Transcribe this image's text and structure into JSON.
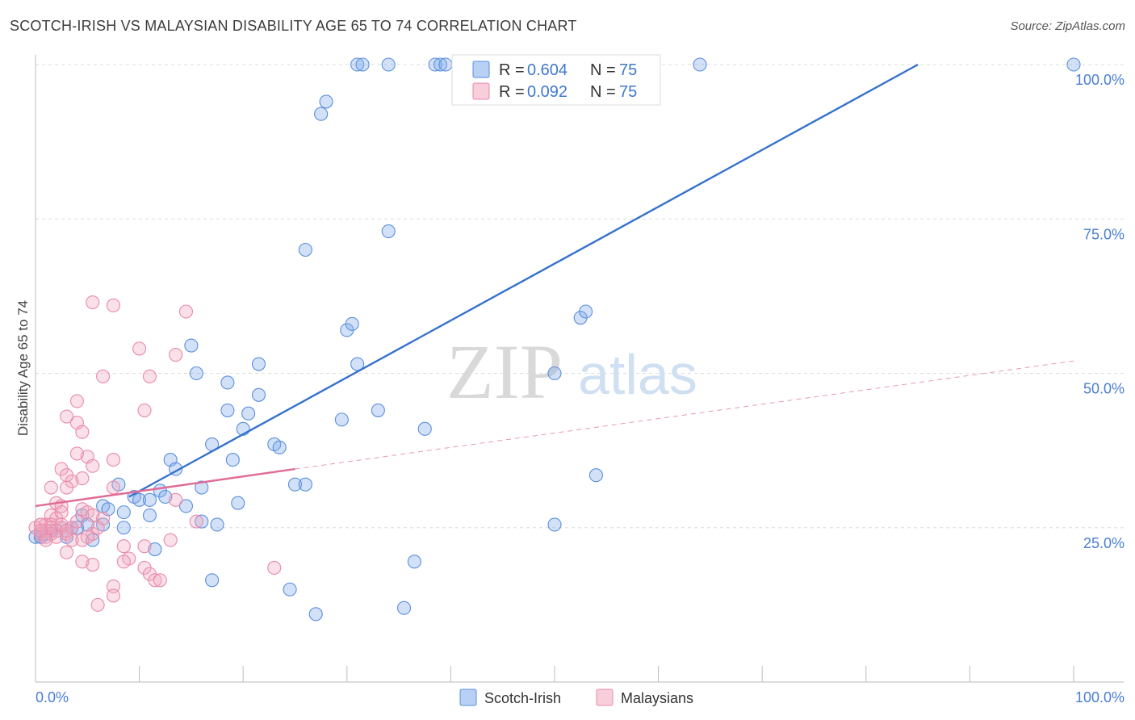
{
  "title": "SCOTCH-IRISH VS MALAYSIAN DISABILITY AGE 65 TO 74 CORRELATION CHART",
  "source": "Source: ZipAtlas.com",
  "watermark": {
    "zip": "ZIP",
    "atlas": "atlas"
  },
  "chart_data": {
    "type": "scatter",
    "title": "SCOTCH-IRISH VS MALAYSIAN DISABILITY AGE 65 TO 74 CORRELATION CHART",
    "xlabel": "",
    "ylabel": "Disability Age 65 to 74",
    "xlim": [
      0,
      100
    ],
    "ylim": [
      0,
      100
    ],
    "x_tick_labels": [
      "0.0%",
      "100.0%"
    ],
    "y_ticks": [
      25,
      50,
      75,
      100
    ],
    "y_tick_labels": [
      "25.0%",
      "50.0%",
      "75.0%",
      "100.0%"
    ],
    "grid": true,
    "legend": [
      {
        "r_label": "R =",
        "r": "0.604",
        "n_label": "N =",
        "n": "75",
        "color": "#7eaaea"
      },
      {
        "r_label": "R =",
        "r": "0.092",
        "n_label": "N =",
        "n": "75",
        "color": "#f2a6be"
      }
    ],
    "series": [
      {
        "name": "Scotch-Irish",
        "color": "#7eaaea",
        "line_color": "#3572cc",
        "trend": {
          "x": [
            9,
            85
          ],
          "y": [
            30,
            100
          ]
        },
        "points": [
          [
            31,
            100
          ],
          [
            31.5,
            100
          ],
          [
            34,
            100
          ],
          [
            38.5,
            100
          ],
          [
            39,
            100
          ],
          [
            39.5,
            100
          ],
          [
            64,
            100
          ],
          [
            100,
            100
          ],
          [
            28,
            94
          ],
          [
            27.5,
            92
          ],
          [
            34,
            73
          ],
          [
            26,
            70
          ],
          [
            52.5,
            59
          ],
          [
            53,
            60
          ],
          [
            30,
            57
          ],
          [
            30.5,
            58
          ],
          [
            15,
            54.5
          ],
          [
            15.5,
            50
          ],
          [
            21.5,
            51.5
          ],
          [
            31,
            51.5
          ],
          [
            50,
            50
          ],
          [
            18.5,
            48.5
          ],
          [
            21.5,
            46.5
          ],
          [
            18.5,
            44
          ],
          [
            20.5,
            43.5
          ],
          [
            29.5,
            42.5
          ],
          [
            33,
            44
          ],
          [
            37.5,
            41
          ],
          [
            20,
            41
          ],
          [
            17,
            38.5
          ],
          [
            23,
            38.5
          ],
          [
            23.5,
            38
          ],
          [
            19,
            36
          ],
          [
            13,
            36
          ],
          [
            13.5,
            34.5
          ],
          [
            54,
            33.5
          ],
          [
            25,
            32
          ],
          [
            26,
            32
          ],
          [
            16,
            31.5
          ],
          [
            12,
            31
          ],
          [
            12.5,
            30
          ],
          [
            9.5,
            30
          ],
          [
            8,
            32
          ],
          [
            10,
            29.5
          ],
          [
            11,
            29.5
          ],
          [
            19.5,
            29
          ],
          [
            14.5,
            28.5
          ],
          [
            6.5,
            28.5
          ],
          [
            7,
            28
          ],
          [
            8.5,
            27.5
          ],
          [
            4.5,
            27
          ],
          [
            11,
            27
          ],
          [
            16,
            26
          ],
          [
            17.5,
            25.5
          ],
          [
            50,
            25.5
          ],
          [
            8.5,
            25
          ],
          [
            6.5,
            25.5
          ],
          [
            5,
            25.5
          ],
          [
            3.5,
            25
          ],
          [
            2,
            24.5
          ],
          [
            1.5,
            24.5
          ],
          [
            1,
            24
          ],
          [
            0.5,
            23.5
          ],
          [
            0,
            23.5
          ],
          [
            0.5,
            23.5
          ],
          [
            3,
            23.5
          ],
          [
            5.5,
            23
          ],
          [
            11.5,
            21.5
          ],
          [
            36.5,
            19.5
          ],
          [
            17,
            16.5
          ],
          [
            24.5,
            15
          ],
          [
            27,
            11
          ],
          [
            35.5,
            12
          ],
          [
            4,
            25
          ],
          [
            2.5,
            25
          ]
        ]
      },
      {
        "name": "Malaysians",
        "color": "#f2a6be",
        "line_color": "#e06b96",
        "trend": {
          "x": [
            0,
            25
          ],
          "y": [
            28.5,
            34.5
          ]
        },
        "dashed_extension": {
          "x": [
            25,
            100
          ],
          "y": [
            34.5,
            52
          ]
        },
        "points": [
          [
            5.5,
            61.5
          ],
          [
            7.5,
            61
          ],
          [
            14.5,
            60
          ],
          [
            10,
            54
          ],
          [
            13.5,
            53
          ],
          [
            6.5,
            49.5
          ],
          [
            11,
            49.5
          ],
          [
            4,
            45.5
          ],
          [
            10.5,
            44
          ],
          [
            3,
            43
          ],
          [
            4,
            42
          ],
          [
            4.5,
            40.5
          ],
          [
            4,
            37
          ],
          [
            5,
            36.5
          ],
          [
            7.5,
            36
          ],
          [
            5.5,
            35
          ],
          [
            2.5,
            34.5
          ],
          [
            3,
            33.5
          ],
          [
            4.5,
            33
          ],
          [
            3.5,
            32.5
          ],
          [
            1.5,
            31.5
          ],
          [
            3,
            31.5
          ],
          [
            7.5,
            31.5
          ],
          [
            13.5,
            29.5
          ],
          [
            2,
            29
          ],
          [
            2.5,
            28.5
          ],
          [
            4.5,
            28
          ],
          [
            5,
            27.5
          ],
          [
            1.5,
            27
          ],
          [
            5.5,
            27
          ],
          [
            2,
            26.5
          ],
          [
            15.5,
            26
          ],
          [
            1,
            25.5
          ],
          [
            1.5,
            25.5
          ],
          [
            0.5,
            25.5
          ],
          [
            2.5,
            25
          ],
          [
            0,
            25
          ],
          [
            1,
            24.5
          ],
          [
            2,
            24.5
          ],
          [
            0.5,
            24
          ],
          [
            1.5,
            24
          ],
          [
            3,
            24
          ],
          [
            5.5,
            24
          ],
          [
            1,
            23.5
          ],
          [
            2,
            23.5
          ],
          [
            3.5,
            23
          ],
          [
            4.5,
            23
          ],
          [
            13,
            23
          ],
          [
            8.5,
            22
          ],
          [
            10.5,
            22
          ],
          [
            3,
            21
          ],
          [
            9,
            20
          ],
          [
            8.5,
            19.5
          ],
          [
            4.5,
            19.5
          ],
          [
            5.5,
            19
          ],
          [
            10.5,
            18.5
          ],
          [
            23,
            18.5
          ],
          [
            11,
            17.5
          ],
          [
            11.5,
            16.5
          ],
          [
            12,
            16.5
          ],
          [
            7.5,
            15.5
          ],
          [
            7.5,
            14
          ],
          [
            6,
            12.5
          ],
          [
            0.5,
            25.5
          ],
          [
            1.5,
            25
          ],
          [
            2.5,
            25.5
          ],
          [
            0.5,
            24.5
          ],
          [
            3.5,
            25
          ],
          [
            1,
            23
          ],
          [
            6.5,
            26.5
          ],
          [
            2.5,
            27.5
          ],
          [
            4,
            26
          ],
          [
            3,
            24.5
          ],
          [
            5,
            23.5
          ],
          [
            6,
            25
          ]
        ]
      }
    ]
  }
}
